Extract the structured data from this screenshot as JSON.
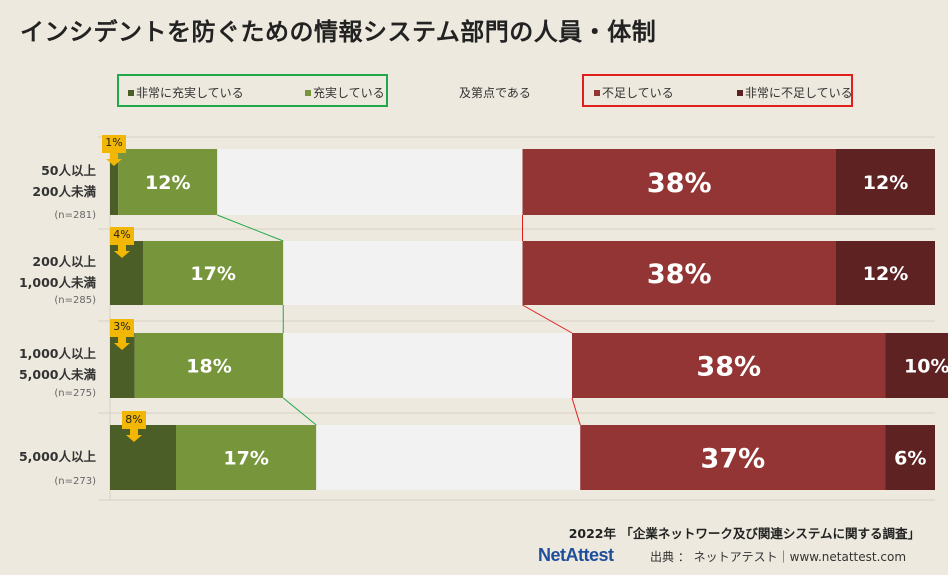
{
  "title": "インシデントを防ぐための情報システム部門の人員・体制",
  "legend": {
    "items": [
      {
        "label": "非常に充実している",
        "color": "#4b5e27"
      },
      {
        "label": "充実している",
        "color": "#77963b"
      },
      {
        "label": "及第点である",
        "color": "#f2f2f2"
      },
      {
        "label": "不足している",
        "color": "#943535"
      },
      {
        "label": "非常に不足している",
        "color": "#5e2222"
      }
    ],
    "positive_box_color": "#22a84a",
    "negative_box_color": "#e01e1e"
  },
  "chart_data": {
    "type": "bar",
    "orientation": "horizontal",
    "stacked": "100%",
    "categories": [
      {
        "line1": "50人以上",
        "line2": "200人未満",
        "n": "(n=281)"
      },
      {
        "line1": "200人以上",
        "line2": "1,000人未満",
        "n": "(n=285)"
      },
      {
        "line1": "1,000人以上",
        "line2": "5,000人未満",
        "n": "(n=275)"
      },
      {
        "line1": "5,000人以上",
        "line2": "",
        "n": "(n=273)"
      }
    ],
    "series": [
      {
        "name": "非常に充実している",
        "values": [
          1,
          4,
          3,
          8
        ],
        "labels": [
          "1%",
          "4%",
          "3%",
          "8%"
        ]
      },
      {
        "name": "充実している",
        "values": [
          12,
          17,
          18,
          17
        ],
        "labels": [
          "12%",
          "17%",
          "18%",
          "17%"
        ]
      },
      {
        "name": "及第点である",
        "values": [
          37,
          29,
          35,
          32
        ],
        "labels": [
          "",
          "",
          "",
          ""
        ]
      },
      {
        "name": "不足している",
        "values": [
          38,
          38,
          38,
          37
        ],
        "labels": [
          "38%",
          "38%",
          "38%",
          "37%"
        ]
      },
      {
        "name": "非常に不足している",
        "values": [
          12,
          12,
          10,
          6
        ],
        "labels": [
          "12%",
          "12%",
          "10%",
          "6%"
        ]
      }
    ],
    "xlim": [
      0,
      100
    ],
    "grid": true,
    "connector_lines": true
  },
  "footer": {
    "source_title": "2022年 「企業ネットワーク及び関連システムに関する調査」",
    "logo": "NetAttest",
    "credit": "出典 ： ネットアテスト｜www.netattest.com"
  }
}
